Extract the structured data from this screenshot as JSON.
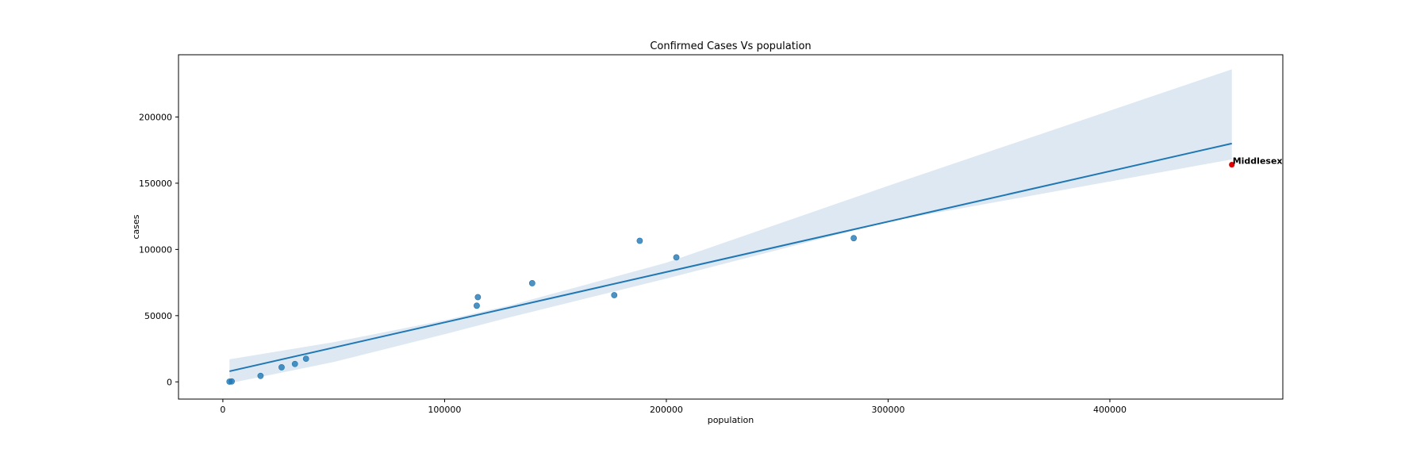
{
  "chart_data": {
    "type": "scatter",
    "title": "Confirmed Cases Vs population",
    "xlabel": "population",
    "ylabel": "cases",
    "xlim": [
      -20000,
      478000
    ],
    "ylim": [
      -13000,
      247000
    ],
    "xticks": [
      0,
      100000,
      200000,
      300000,
      400000
    ],
    "yticks": [
      0,
      50000,
      100000,
      150000,
      200000
    ],
    "grid": false,
    "points": [
      {
        "x": 3000,
        "y": 200
      },
      {
        "x": 4000,
        "y": 300
      },
      {
        "x": 17000,
        "y": 4500
      },
      {
        "x": 26500,
        "y": 11000
      },
      {
        "x": 32500,
        "y": 13500
      },
      {
        "x": 37500,
        "y": 17500
      },
      {
        "x": 114500,
        "y": 57500
      },
      {
        "x": 115000,
        "y": 64000
      },
      {
        "x": 139500,
        "y": 74500
      },
      {
        "x": 176500,
        "y": 65500
      },
      {
        "x": 188000,
        "y": 106500
      },
      {
        "x": 204500,
        "y": 94000
      },
      {
        "x": 284500,
        "y": 108500
      }
    ],
    "highlight": {
      "x": 455000,
      "y": 164000,
      "label": "Middlesex",
      "color": "#e00000"
    },
    "regression": {
      "x": [
        3000,
        455000
      ],
      "y": [
        8000,
        180000
      ]
    },
    "confidence_band": {
      "x": [
        3000,
        50000,
        100000,
        130000,
        200000,
        300000,
        455000
      ],
      "upper": [
        17000,
        30000,
        46500,
        58000,
        90000,
        148000,
        236000
      ],
      "lower": [
        -1000,
        15000,
        36000,
        49000,
        78000,
        121000,
        168000
      ]
    },
    "colors": {
      "point": "#1f77b4",
      "line": "#1f77b4",
      "band": "#dde8f3"
    }
  }
}
